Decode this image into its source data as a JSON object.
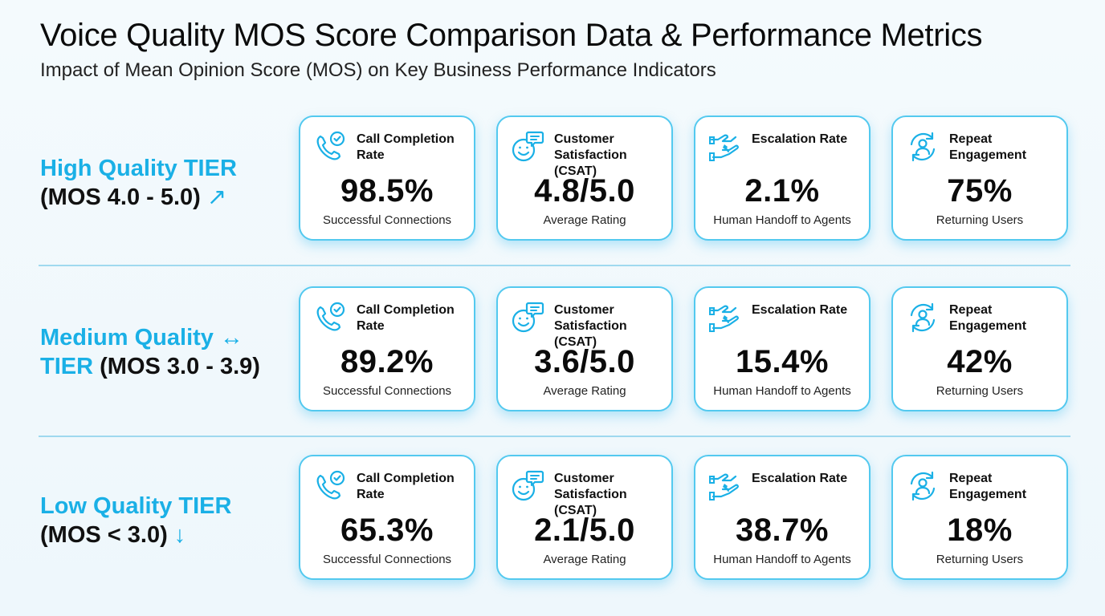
{
  "header": {
    "title": "Voice Quality MOS Score Comparison Data & Performance Metrics",
    "subtitle": "Impact of Mean Opinion Score (MOS) on Key Business Performance Indicators"
  },
  "colors": {
    "accent": "#1ab0e6",
    "card_border": "#53c9ef",
    "divider": "#9fd9ef"
  },
  "metric_titles": {
    "call_completion": "Call Completion Rate",
    "csat": "Customer Satisfaction (CSAT)",
    "escalation": "Escalation Rate",
    "repeat": "Repeat Engagement"
  },
  "metric_subtitles": {
    "call_completion": "Successful Connections",
    "csat": "Average Rating",
    "escalation": "Human Handoff to Agents",
    "repeat": "Returning Users"
  },
  "icons": {
    "call_completion": "phone-check-icon",
    "csat": "smile-chat-icon",
    "escalation": "hand-handoff-icon",
    "repeat": "user-refresh-icon"
  },
  "tiers": [
    {
      "name": "High Quality TIER",
      "range": "(MOS 4.0 - 5.0)",
      "arrow": "↗",
      "values": {
        "call_completion": "98.5%",
        "csat": "4.8/5.0",
        "escalation": "2.1%",
        "repeat": "75%"
      }
    },
    {
      "name_part1": "Medium Quality",
      "arrow": "↔",
      "name_part2": "TIER",
      "range": "(MOS 3.0 - 3.9)",
      "values": {
        "call_completion": "89.2%",
        "csat": "3.6/5.0",
        "escalation": "15.4%",
        "repeat": "42%"
      }
    },
    {
      "name": "Low Quality TIER",
      "range": "(MOS < 3.0)",
      "arrow": "↓",
      "values": {
        "call_completion": "65.3%",
        "csat": "2.1/5.0",
        "escalation": "38.7%",
        "repeat": "18%"
      }
    }
  ]
}
